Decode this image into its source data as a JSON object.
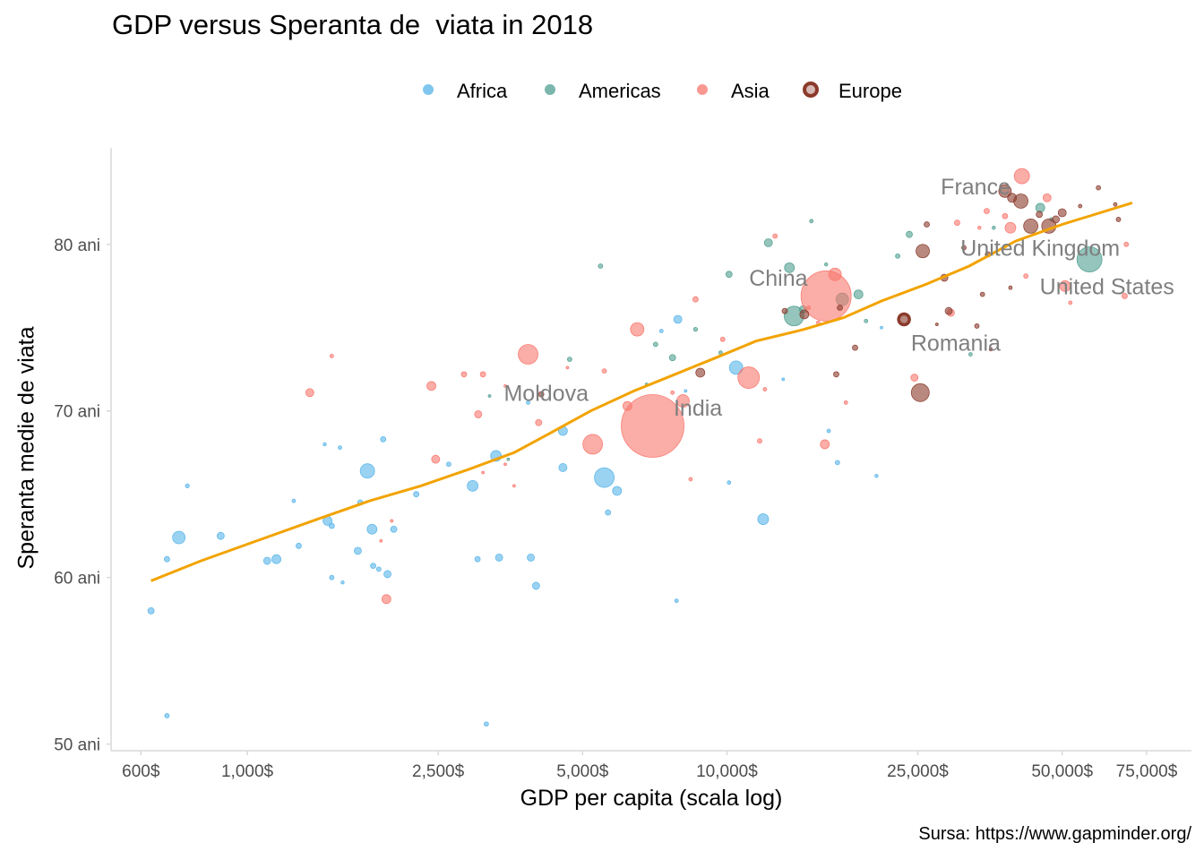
{
  "chart_data": {
    "type": "scatter",
    "title": "GDP versus Speranta de  viata in 2018",
    "xlabel": "GDP per capita (scala log)",
    "ylabel": "Speranta medie de viata",
    "caption": "Sursa: https://www.gapminder.org/",
    "x_scale": "log",
    "xlim": [
      520,
      93000
    ],
    "ylim": [
      49.6,
      85.8
    ],
    "x_ticks": [
      {
        "value": 600,
        "label": "600$"
      },
      {
        "value": 1000,
        "label": "1,000$"
      },
      {
        "value": 2500,
        "label": "2,500$"
      },
      {
        "value": 5000,
        "label": "5,000$"
      },
      {
        "value": 10000,
        "label": "10,000$"
      },
      {
        "value": 25000,
        "label": "25,000$"
      },
      {
        "value": 50000,
        "label": "50,000$"
      },
      {
        "value": 75000,
        "label": "75,000$"
      }
    ],
    "y_ticks": [
      {
        "value": 50,
        "label": "50 ani"
      },
      {
        "value": 60,
        "label": "60 ani"
      },
      {
        "value": 70,
        "label": "70 ani"
      },
      {
        "value": 80,
        "label": "80 ani"
      }
    ],
    "grid": false,
    "legend_position": "top",
    "legend": [
      {
        "name": "Africa",
        "color": "#56b4e9"
      },
      {
        "name": "Americas",
        "color": "#4e9e8f"
      },
      {
        "name": "Asia",
        "color": "#f8766d"
      },
      {
        "name": "Europe",
        "color": "#8b3a2b"
      }
    ],
    "trend_line": {
      "color": "#f2a300",
      "points": [
        [
          630,
          59.8
        ],
        [
          800,
          61.0
        ],
        [
          1000,
          62.0
        ],
        [
          1400,
          63.5
        ],
        [
          1800,
          64.6
        ],
        [
          2300,
          65.5
        ],
        [
          2900,
          66.5
        ],
        [
          3600,
          67.5
        ],
        [
          4300,
          68.7
        ],
        [
          5200,
          70.0
        ],
        [
          6400,
          71.2
        ],
        [
          7800,
          72.2
        ],
        [
          9500,
          73.2
        ],
        [
          11500,
          74.2
        ],
        [
          14500,
          74.9
        ],
        [
          17500,
          75.6
        ],
        [
          21000,
          76.6
        ],
        [
          26000,
          77.6
        ],
        [
          32000,
          78.7
        ],
        [
          40000,
          80.2
        ],
        [
          50000,
          81.2
        ],
        [
          60000,
          81.9
        ],
        [
          70000,
          82.5
        ]
      ]
    },
    "labels": [
      {
        "text": "France",
        "x": 33000,
        "y": 83.5
      },
      {
        "text": "United Kingdom",
        "x": 45000,
        "y": 79.8
      },
      {
        "text": "United States",
        "x": 62000,
        "y": 77.5
      },
      {
        "text": "China",
        "x": 12800,
        "y": 78.0
      },
      {
        "text": "Romania",
        "x": 30000,
        "y": 74.1
      },
      {
        "text": "Moldova",
        "x": 4200,
        "y": 71.1
      },
      {
        "text": "India",
        "x": 8700,
        "y": 70.2
      }
    ],
    "series": [
      {
        "name": "Africa",
        "color": "#56b4e9",
        "points": [
          {
            "x": 630,
            "y": 58.0,
            "r": 3.5
          },
          {
            "x": 680,
            "y": 51.7,
            "r": 2.5
          },
          {
            "x": 680,
            "y": 61.1,
            "r": 3
          },
          {
            "x": 720,
            "y": 62.4,
            "r": 7
          },
          {
            "x": 750,
            "y": 65.5,
            "r": 2.2
          },
          {
            "x": 880,
            "y": 62.5,
            "r": 4
          },
          {
            "x": 1100,
            "y": 61.0,
            "r": 4
          },
          {
            "x": 1150,
            "y": 61.1,
            "r": 5
          },
          {
            "x": 1250,
            "y": 64.6,
            "r": 2
          },
          {
            "x": 1280,
            "y": 61.9,
            "r": 3
          },
          {
            "x": 1450,
            "y": 68.0,
            "r": 1.8
          },
          {
            "x": 1470,
            "y": 63.4,
            "r": 5
          },
          {
            "x": 1500,
            "y": 63.1,
            "r": 3
          },
          {
            "x": 1500,
            "y": 60.0,
            "r": 2.5
          },
          {
            "x": 1580,
            "y": 59.7,
            "r": 1.8
          },
          {
            "x": 1560,
            "y": 67.8,
            "r": 2
          },
          {
            "x": 1720,
            "y": 64.5,
            "r": 3
          },
          {
            "x": 1700,
            "y": 61.6,
            "r": 4
          },
          {
            "x": 1780,
            "y": 66.4,
            "r": 8
          },
          {
            "x": 1820,
            "y": 62.9,
            "r": 5.5
          },
          {
            "x": 1830,
            "y": 60.7,
            "r": 3
          },
          {
            "x": 1880,
            "y": 60.5,
            "r": 2.5
          },
          {
            "x": 1920,
            "y": 68.3,
            "r": 3
          },
          {
            "x": 1960,
            "y": 60.2,
            "r": 4
          },
          {
            "x": 2020,
            "y": 62.9,
            "r": 3.5
          },
          {
            "x": 2250,
            "y": 65.0,
            "r": 3
          },
          {
            "x": 2630,
            "y": 66.8,
            "r": 2.5
          },
          {
            "x": 2950,
            "y": 65.5,
            "r": 6
          },
          {
            "x": 3020,
            "y": 61.1,
            "r": 3
          },
          {
            "x": 3150,
            "y": 51.2,
            "r": 2.5
          },
          {
            "x": 3350,
            "y": 61.2,
            "r": 4
          },
          {
            "x": 3300,
            "y": 67.3,
            "r": 6
          },
          {
            "x": 3900,
            "y": 61.2,
            "r": 4
          },
          {
            "x": 3850,
            "y": 70.5,
            "r": 2
          },
          {
            "x": 4000,
            "y": 59.5,
            "r": 4
          },
          {
            "x": 4550,
            "y": 68.8,
            "r": 5
          },
          {
            "x": 4550,
            "y": 66.6,
            "r": 4.5
          },
          {
            "x": 5550,
            "y": 66.0,
            "r": 11
          },
          {
            "x": 5650,
            "y": 63.9,
            "r": 3
          },
          {
            "x": 5900,
            "y": 65.2,
            "r": 5
          },
          {
            "x": 7300,
            "y": 74.8,
            "r": 2
          },
          {
            "x": 7900,
            "y": 75.5,
            "r": 4.5
          },
          {
            "x": 7850,
            "y": 58.6,
            "r": 2
          },
          {
            "x": 10100,
            "y": 65.7,
            "r": 2
          },
          {
            "x": 10450,
            "y": 72.6,
            "r": 7.5
          },
          {
            "x": 11900,
            "y": 63.5,
            "r": 6
          },
          {
            "x": 17000,
            "y": 66.9,
            "r": 2.5
          },
          {
            "x": 20500,
            "y": 66.1,
            "r": 1.8
          },
          {
            "x": 21000,
            "y": 75.0,
            "r": 1.5
          },
          {
            "x": 16300,
            "y": 68.8,
            "r": 2
          },
          {
            "x": 13100,
            "y": 71.9,
            "r": 1.5
          },
          {
            "x": 8200,
            "y": 71.2,
            "r": 1.5
          }
        ]
      },
      {
        "name": "Americas",
        "color": "#4e9e8f",
        "points": [
          {
            "x": 3200,
            "y": 70.9,
            "r": 1.5
          },
          {
            "x": 3500,
            "y": 67.1,
            "r": 1.5
          },
          {
            "x": 4700,
            "y": 73.1,
            "r": 2.5
          },
          {
            "x": 5450,
            "y": 78.7,
            "r": 2.5
          },
          {
            "x": 7100,
            "y": 74.0,
            "r": 2.5
          },
          {
            "x": 7700,
            "y": 73.2,
            "r": 3.5
          },
          {
            "x": 8600,
            "y": 74.9,
            "r": 2.2
          },
          {
            "x": 9700,
            "y": 73.5,
            "r": 2
          },
          {
            "x": 10100,
            "y": 78.2,
            "r": 3.5
          },
          {
            "x": 12200,
            "y": 80.1,
            "r": 4.5
          },
          {
            "x": 13500,
            "y": 78.6,
            "r": 5.5
          },
          {
            "x": 13800,
            "y": 75.7,
            "r": 11
          },
          {
            "x": 14400,
            "y": 76.1,
            "r": 4
          },
          {
            "x": 15000,
            "y": 81.4,
            "r": 2
          },
          {
            "x": 17400,
            "y": 76.7,
            "r": 7
          },
          {
            "x": 18800,
            "y": 77.0,
            "r": 5
          },
          {
            "x": 19500,
            "y": 75.4,
            "r": 2
          },
          {
            "x": 22700,
            "y": 79.3,
            "r": 2.5
          },
          {
            "x": 24000,
            "y": 80.6,
            "r": 3.5
          },
          {
            "x": 32200,
            "y": 73.4,
            "r": 2
          },
          {
            "x": 45000,
            "y": 82.2,
            "r": 5
          },
          {
            "x": 57000,
            "y": 79.1,
            "r": 14
          },
          {
            "x": 47500,
            "y": 81.5,
            "r": 2
          },
          {
            "x": 36000,
            "y": 81.0,
            "r": 1.8
          },
          {
            "x": 16100,
            "y": 78.8,
            "r": 1.8
          },
          {
            "x": 6800,
            "y": 71.6,
            "r": 1.5
          }
        ]
      },
      {
        "name": "Asia",
        "color": "#f8766d",
        "points": [
          {
            "x": 1350,
            "y": 71.1,
            "r": 4.5
          },
          {
            "x": 1500,
            "y": 73.3,
            "r": 2
          },
          {
            "x": 1900,
            "y": 62.2,
            "r": 1.5
          },
          {
            "x": 1950,
            "y": 58.7,
            "r": 5
          },
          {
            "x": 2000,
            "y": 63.4,
            "r": 1.5
          },
          {
            "x": 2420,
            "y": 71.5,
            "r": 5
          },
          {
            "x": 2470,
            "y": 67.1,
            "r": 4.5
          },
          {
            "x": 2830,
            "y": 72.2,
            "r": 3
          },
          {
            "x": 3030,
            "y": 69.8,
            "r": 4
          },
          {
            "x": 3100,
            "y": 72.2,
            "r": 3
          },
          {
            "x": 3100,
            "y": 66.3,
            "r": 1.5
          },
          {
            "x": 3450,
            "y": 66.8,
            "r": 1.5
          },
          {
            "x": 3450,
            "y": 71.5,
            "r": 1.5
          },
          {
            "x": 3600,
            "y": 65.5,
            "r": 1.5
          },
          {
            "x": 3850,
            "y": 73.4,
            "r": 11
          },
          {
            "x": 4050,
            "y": 69.3,
            "r": 3.5
          },
          {
            "x": 4650,
            "y": 72.6,
            "r": 1.5
          },
          {
            "x": 5250,
            "y": 68.0,
            "r": 11
          },
          {
            "x": 5550,
            "y": 72.4,
            "r": 2.5
          },
          {
            "x": 6200,
            "y": 70.3,
            "r": 5
          },
          {
            "x": 6500,
            "y": 74.9,
            "r": 7.5
          },
          {
            "x": 7000,
            "y": 69.1,
            "r": 35
          },
          {
            "x": 7700,
            "y": 71.1,
            "r": 2
          },
          {
            "x": 8100,
            "y": 70.6,
            "r": 7
          },
          {
            "x": 8600,
            "y": 76.7,
            "r": 3
          },
          {
            "x": 8400,
            "y": 65.9,
            "r": 2
          },
          {
            "x": 9800,
            "y": 74.3,
            "r": 2.5
          },
          {
            "x": 11100,
            "y": 72.0,
            "r": 12
          },
          {
            "x": 12000,
            "y": 71.3,
            "r": 2
          },
          {
            "x": 11700,
            "y": 68.2,
            "r": 2.5
          },
          {
            "x": 12600,
            "y": 80.5,
            "r": 2.5
          },
          {
            "x": 14800,
            "y": 76.2,
            "r": 2
          },
          {
            "x": 15500,
            "y": 75.3,
            "r": 2
          },
          {
            "x": 16100,
            "y": 76.9,
            "r": 28
          },
          {
            "x": 16800,
            "y": 78.2,
            "r": 7
          },
          {
            "x": 16000,
            "y": 68.0,
            "r": 5
          },
          {
            "x": 17700,
            "y": 70.5,
            "r": 2
          },
          {
            "x": 24600,
            "y": 72.0,
            "r": 4
          },
          {
            "x": 29300,
            "y": 75.9,
            "r": 4
          },
          {
            "x": 30200,
            "y": 81.3,
            "r": 3
          },
          {
            "x": 33600,
            "y": 81.0,
            "r": 1.8
          },
          {
            "x": 34800,
            "y": 82.0,
            "r": 3
          },
          {
            "x": 38000,
            "y": 81.7,
            "r": 3
          },
          {
            "x": 39000,
            "y": 81.0,
            "r": 6
          },
          {
            "x": 41200,
            "y": 84.1,
            "r": 8.5
          },
          {
            "x": 42000,
            "y": 78.1,
            "r": 2.5
          },
          {
            "x": 46500,
            "y": 82.8,
            "r": 4.5
          },
          {
            "x": 50700,
            "y": 77.5,
            "r": 6
          },
          {
            "x": 67500,
            "y": 76.9,
            "r": 3
          },
          {
            "x": 68000,
            "y": 80.0,
            "r": 2.5
          },
          {
            "x": 52000,
            "y": 76.5,
            "r": 2
          }
        ]
      },
      {
        "name": "Europe",
        "color": "#8b3a2b",
        "points": [
          {
            "x": 4100,
            "y": 71.0,
            "r": 3
          },
          {
            "x": 8800,
            "y": 72.3,
            "r": 5
          },
          {
            "x": 13200,
            "y": 76.0,
            "r": 3
          },
          {
            "x": 14500,
            "y": 75.8,
            "r": 5
          },
          {
            "x": 17200,
            "y": 76.2,
            "r": 3
          },
          {
            "x": 18500,
            "y": 73.8,
            "r": 3
          },
          {
            "x": 16900,
            "y": 72.2,
            "r": 3
          },
          {
            "x": 23400,
            "y": 75.5,
            "r": 7
          },
          {
            "x": 25300,
            "y": 71.1,
            "r": 10
          },
          {
            "x": 25600,
            "y": 79.6,
            "r": 7.5
          },
          {
            "x": 26100,
            "y": 81.2,
            "r": 3
          },
          {
            "x": 28400,
            "y": 78.0,
            "r": 4
          },
          {
            "x": 29000,
            "y": 76.0,
            "r": 4
          },
          {
            "x": 31200,
            "y": 79.8,
            "r": 2.5
          },
          {
            "x": 33200,
            "y": 75.1,
            "r": 2.5
          },
          {
            "x": 34100,
            "y": 77.0,
            "r": 2.5
          },
          {
            "x": 35000,
            "y": 79.4,
            "r": 3
          },
          {
            "x": 38000,
            "y": 83.2,
            "r": 7
          },
          {
            "x": 39300,
            "y": 82.8,
            "r": 5
          },
          {
            "x": 41000,
            "y": 82.6,
            "r": 8
          },
          {
            "x": 43000,
            "y": 81.1,
            "r": 8
          },
          {
            "x": 44800,
            "y": 81.8,
            "r": 3.5
          },
          {
            "x": 46900,
            "y": 81.1,
            "r": 8
          },
          {
            "x": 48500,
            "y": 81.5,
            "r": 4
          },
          {
            "x": 50000,
            "y": 81.9,
            "r": 4.5
          },
          {
            "x": 54500,
            "y": 82.3,
            "r": 2
          },
          {
            "x": 59500,
            "y": 83.4,
            "r": 2.5
          },
          {
            "x": 64500,
            "y": 82.4,
            "r": 2
          },
          {
            "x": 65500,
            "y": 81.5,
            "r": 2.5
          },
          {
            "x": 39000,
            "y": 77.4,
            "r": 2
          },
          {
            "x": 35500,
            "y": 73.7,
            "r": 1.8
          },
          {
            "x": 27400,
            "y": 75.2,
            "r": 1.5
          }
        ]
      }
    ],
    "highlight": {
      "name": "Romania",
      "x": 23400,
      "y": 75.5,
      "color": "#8b3a2b"
    }
  }
}
